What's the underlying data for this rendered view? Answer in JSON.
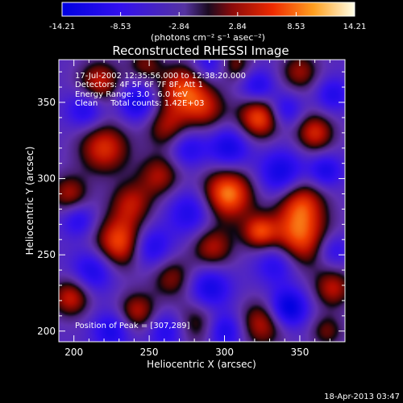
{
  "chart_data": {
    "type": "heatmap",
    "title": "Reconstructed RHESSI Image",
    "xlabel": "Heliocentric X (arcsec)",
    "ylabel": "Heliocentric Y (arcsec)",
    "xlim": [
      190,
      380
    ],
    "ylim": [
      193,
      378
    ],
    "x_ticks": [
      200,
      250,
      300,
      350
    ],
    "y_ticks": [
      200,
      250,
      300,
      350
    ],
    "colorbar": {
      "min": -14.21,
      "max": 14.21,
      "ticks": [
        "-14.21",
        "-8.53",
        "-2.84",
        "2.84",
        "8.53",
        "14.21"
      ],
      "units": "(photons cm⁻² s⁻¹ asec⁻²)"
    },
    "annotations": [
      "17-Jul-2002 12:35:56.000 to 12:38:20.000",
      "Detectors: 4F 5F 6F 7F 8F, Att 1",
      "Energy Range: 3.0 - 6.0 keV",
      "Clean     Total counts: 1.42E+03"
    ],
    "peak_text": "Position of Peak = [307,289]",
    "peak": {
      "x": 307,
      "y": 289
    },
    "blobs": [
      {
        "x": 302,
        "y": 290,
        "v": 14.2,
        "s": 12
      },
      {
        "x": 323,
        "y": 340,
        "v": 12.5,
        "s": 10
      },
      {
        "x": 231,
        "y": 258,
        "v": 13.0,
        "s": 12
      },
      {
        "x": 238,
        "y": 284,
        "v": 8.0,
        "s": 10
      },
      {
        "x": 349,
        "y": 261,
        "v": 12.5,
        "s": 14
      },
      {
        "x": 292,
        "y": 255,
        "v": 8.5,
        "s": 10
      },
      {
        "x": 273,
        "y": 358,
        "v": 11.5,
        "s": 12
      },
      {
        "x": 262,
        "y": 333,
        "v": 7.5,
        "s": 10
      },
      {
        "x": 288,
        "y": 345,
        "v": 7.0,
        "s": 10
      },
      {
        "x": 220,
        "y": 320,
        "v": 10.5,
        "s": 12
      },
      {
        "x": 257,
        "y": 302,
        "v": 8.0,
        "s": 10
      },
      {
        "x": 351,
        "y": 285,
        "v": 9.5,
        "s": 11
      },
      {
        "x": 360,
        "y": 330,
        "v": 10.0,
        "s": 9
      },
      {
        "x": 350,
        "y": 370,
        "v": 7.5,
        "s": 9
      },
      {
        "x": 217,
        "y": 363,
        "v": 9.5,
        "s": 10
      },
      {
        "x": 197,
        "y": 290,
        "v": 8.0,
        "s": 9
      },
      {
        "x": 265,
        "y": 235,
        "v": 7.0,
        "s": 10
      },
      {
        "x": 325,
        "y": 205,
        "v": 9.0,
        "s": 11
      },
      {
        "x": 282,
        "y": 205,
        "v": 6.5,
        "s": 11
      },
      {
        "x": 242,
        "y": 213,
        "v": 8.5,
        "s": 9
      },
      {
        "x": 323,
        "y": 265,
        "v": 10.0,
        "s": 8
      },
      {
        "x": 198,
        "y": 222,
        "v": 9.5,
        "s": 9
      },
      {
        "x": 372,
        "y": 228,
        "v": 8.5,
        "s": 9
      },
      {
        "x": 368,
        "y": 200,
        "v": 6.0,
        "s": 8
      },
      {
        "x": 247,
        "y": 375,
        "v": 6.0,
        "s": 8
      },
      {
        "x": 307,
        "y": 375,
        "v": 6.5,
        "s": 8
      },
      {
        "x": 303,
        "y": 320,
        "v": -8.0,
        "s": 10
      },
      {
        "x": 338,
        "y": 303,
        "v": -8.5,
        "s": 11
      },
      {
        "x": 250,
        "y": 255,
        "v": -8.5,
        "s": 10
      },
      {
        "x": 278,
        "y": 278,
        "v": -7.0,
        "s": 11
      },
      {
        "x": 213,
        "y": 240,
        "v": -7.5,
        "s": 10
      },
      {
        "x": 290,
        "y": 228,
        "v": -8.0,
        "s": 10
      },
      {
        "x": 335,
        "y": 245,
        "v": -8.0,
        "s": 10
      },
      {
        "x": 342,
        "y": 215,
        "v": -11.0,
        "s": 9
      },
      {
        "x": 300,
        "y": 200,
        "v": -8.0,
        "s": 9
      },
      {
        "x": 225,
        "y": 200,
        "v": -7.0,
        "s": 9
      },
      {
        "x": 262,
        "y": 200,
        "v": -6.5,
        "s": 9
      },
      {
        "x": 208,
        "y": 345,
        "v": -7.0,
        "s": 9
      },
      {
        "x": 242,
        "y": 350,
        "v": -8.0,
        "s": 9
      },
      {
        "x": 322,
        "y": 360,
        "v": -7.0,
        "s": 8
      },
      {
        "x": 367,
        "y": 305,
        "v": -7.0,
        "s": 8
      },
      {
        "x": 340,
        "y": 345,
        "v": -6.5,
        "s": 8
      },
      {
        "x": 203,
        "y": 273,
        "v": -6.0,
        "s": 8
      },
      {
        "x": 275,
        "y": 320,
        "v": -6.5,
        "s": 9
      },
      {
        "x": 372,
        "y": 355,
        "v": -6.0,
        "s": 8
      },
      {
        "x": 290,
        "y": 375,
        "v": -6.0,
        "s": 8
      },
      {
        "x": 372,
        "y": 253,
        "v": -6.0,
        "s": 8
      }
    ]
  },
  "footer_timestamp": "18-Apr-2013 03:47"
}
